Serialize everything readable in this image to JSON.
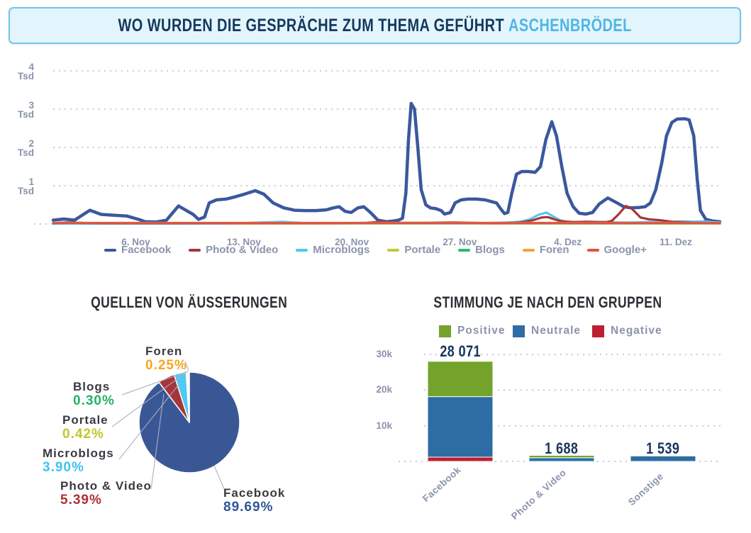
{
  "banner": {
    "title": "WO WURDEN DIE GESPRÄCHE ZUM THEMA GEFÜHRT",
    "highlight": "ASCHENBRÖDEL"
  },
  "colors": {
    "banner_bg": "#E3F5FC",
    "banner_border": "#74C5E8",
    "banner_text": "#14395E",
    "banner_highlight": "#4FB6E5",
    "axis_text": "#8A93AC",
    "gridline": "#C9CEDE",
    "section_title": "#2E2E36",
    "value_navy": "#17355E"
  },
  "chart_data": [
    {
      "type": "line",
      "title": "",
      "y_unit": "Tsd",
      "ylim": [
        0,
        4
      ],
      "y_ticks": [
        {
          "label": "4",
          "unit": "Tsd",
          "value": 4
        },
        {
          "label": "3",
          "unit": "Tsd",
          "value": 3
        },
        {
          "label": "2",
          "unit": "Tsd",
          "value": 2
        },
        {
          "label": "1",
          "unit": "Tsd",
          "value": 1
        }
      ],
      "x_ticks": [
        {
          "label": "6. Nov",
          "f": 0.124
        },
        {
          "label": "13. Nov",
          "f": 0.286
        },
        {
          "label": "20. Nov",
          "f": 0.448
        },
        {
          "label": "27. Nov",
          "f": 0.61
        },
        {
          "label": "4. Dez",
          "f": 0.772
        },
        {
          "label": "11. Dez",
          "f": 0.934
        }
      ],
      "draw_order": [
        3,
        4,
        0,
        2,
        1,
        5,
        6
      ],
      "series": [
        {
          "name": "Facebook",
          "color": "#3A589D",
          "width": 4.5,
          "points": [
            [
              0,
              0.1
            ],
            [
              0.016,
              0.13
            ],
            [
              0.032,
              0.1
            ],
            [
              0.055,
              0.36
            ],
            [
              0.072,
              0.25
            ],
            [
              0.09,
              0.23
            ],
            [
              0.11,
              0.21
            ],
            [
              0.128,
              0.12
            ],
            [
              0.138,
              0.06
            ],
            [
              0.154,
              0.05
            ],
            [
              0.17,
              0.1
            ],
            [
              0.188,
              0.47
            ],
            [
              0.202,
              0.33
            ],
            [
              0.21,
              0.25
            ],
            [
              0.218,
              0.12
            ],
            [
              0.227,
              0.18
            ],
            [
              0.234,
              0.55
            ],
            [
              0.245,
              0.63
            ],
            [
              0.259,
              0.65
            ],
            [
              0.271,
              0.7
            ],
            [
              0.287,
              0.78
            ],
            [
              0.303,
              0.87
            ],
            [
              0.316,
              0.78
            ],
            [
              0.33,
              0.55
            ],
            [
              0.346,
              0.42
            ],
            [
              0.362,
              0.36
            ],
            [
              0.378,
              0.35
            ],
            [
              0.394,
              0.35
            ],
            [
              0.41,
              0.37
            ],
            [
              0.42,
              0.42
            ],
            [
              0.429,
              0.45
            ],
            [
              0.438,
              0.33
            ],
            [
              0.447,
              0.3
            ],
            [
              0.457,
              0.42
            ],
            [
              0.466,
              0.45
            ],
            [
              0.476,
              0.3
            ],
            [
              0.487,
              0.1
            ],
            [
              0.5,
              0.06
            ],
            [
              0.511,
              0.08
            ],
            [
              0.518,
              0.1
            ],
            [
              0.524,
              0.15
            ],
            [
              0.529,
              0.8
            ],
            [
              0.533,
              2.2
            ],
            [
              0.537,
              3.15
            ],
            [
              0.542,
              3.0
            ],
            [
              0.547,
              2.0
            ],
            [
              0.552,
              0.9
            ],
            [
              0.559,
              0.5
            ],
            [
              0.566,
              0.42
            ],
            [
              0.574,
              0.4
            ],
            [
              0.582,
              0.35
            ],
            [
              0.587,
              0.26
            ],
            [
              0.596,
              0.3
            ],
            [
              0.603,
              0.55
            ],
            [
              0.612,
              0.63
            ],
            [
              0.622,
              0.65
            ],
            [
              0.635,
              0.65
            ],
            [
              0.648,
              0.63
            ],
            [
              0.656,
              0.59
            ],
            [
              0.665,
              0.55
            ],
            [
              0.672,
              0.38
            ],
            [
              0.677,
              0.27
            ],
            [
              0.682,
              0.3
            ],
            [
              0.688,
              0.8
            ],
            [
              0.695,
              1.3
            ],
            [
              0.703,
              1.37
            ],
            [
              0.713,
              1.37
            ],
            [
              0.723,
              1.35
            ],
            [
              0.731,
              1.5
            ],
            [
              0.739,
              2.2
            ],
            [
              0.748,
              2.67
            ],
            [
              0.755,
              2.3
            ],
            [
              0.763,
              1.5
            ],
            [
              0.771,
              0.8
            ],
            [
              0.78,
              0.45
            ],
            [
              0.789,
              0.28
            ],
            [
              0.799,
              0.26
            ],
            [
              0.809,
              0.3
            ],
            [
              0.819,
              0.52
            ],
            [
              0.832,
              0.68
            ],
            [
              0.846,
              0.55
            ],
            [
              0.856,
              0.45
            ],
            [
              0.867,
              0.42
            ],
            [
              0.878,
              0.43
            ],
            [
              0.888,
              0.45
            ],
            [
              0.896,
              0.55
            ],
            [
              0.904,
              0.9
            ],
            [
              0.913,
              1.6
            ],
            [
              0.92,
              2.3
            ],
            [
              0.928,
              2.65
            ],
            [
              0.936,
              2.74
            ],
            [
              0.947,
              2.75
            ],
            [
              0.954,
              2.72
            ],
            [
              0.961,
              2.3
            ],
            [
              0.966,
              1.2
            ],
            [
              0.971,
              0.35
            ],
            [
              0.979,
              0.12
            ],
            [
              0.989,
              0.08
            ],
            [
              1,
              0.06
            ]
          ]
        },
        {
          "name": "Photo & Video",
          "color": "#A5353A",
          "width": 3.2,
          "points": [
            [
              0,
              0.02
            ],
            [
              0.02,
              0.04
            ],
            [
              0.04,
              0.03
            ],
            [
              0.07,
              0.02
            ],
            [
              0.13,
              0.02
            ],
            [
              0.2,
              0.02
            ],
            [
              0.3,
              0.02
            ],
            [
              0.4,
              0.02
            ],
            [
              0.47,
              0.03
            ],
            [
              0.49,
              0.06
            ],
            [
              0.505,
              0.05
            ],
            [
              0.52,
              0.03
            ],
            [
              0.56,
              0.03
            ],
            [
              0.6,
              0.04
            ],
            [
              0.63,
              0.03
            ],
            [
              0.66,
              0.02
            ],
            [
              0.69,
              0.03
            ],
            [
              0.705,
              0.05
            ],
            [
              0.72,
              0.1
            ],
            [
              0.733,
              0.17
            ],
            [
              0.742,
              0.18
            ],
            [
              0.752,
              0.12
            ],
            [
              0.762,
              0.07
            ],
            [
              0.78,
              0.05
            ],
            [
              0.8,
              0.06
            ],
            [
              0.815,
              0.05
            ],
            [
              0.83,
              0.05
            ],
            [
              0.838,
              0.08
            ],
            [
              0.848,
              0.25
            ],
            [
              0.859,
              0.47
            ],
            [
              0.868,
              0.4
            ],
            [
              0.881,
              0.17
            ],
            [
              0.894,
              0.12
            ],
            [
              0.91,
              0.1
            ],
            [
              0.928,
              0.06
            ],
            [
              0.947,
              0.04
            ],
            [
              0.965,
              0.03
            ],
            [
              0.98,
              0.03
            ],
            [
              1,
              0.02
            ]
          ]
        },
        {
          "name": "Microblogs",
          "color": "#52C8F0",
          "width": 3.2,
          "points": [
            [
              0,
              0.01
            ],
            [
              0.1,
              0.01
            ],
            [
              0.2,
              0.01
            ],
            [
              0.28,
              0.02
            ],
            [
              0.33,
              0.05
            ],
            [
              0.345,
              0.06
            ],
            [
              0.36,
              0.04
            ],
            [
              0.38,
              0.02
            ],
            [
              0.45,
              0.02
            ],
            [
              0.5,
              0.02
            ],
            [
              0.55,
              0.02
            ],
            [
              0.6,
              0.02
            ],
            [
              0.64,
              0.02
            ],
            [
              0.66,
              0.03
            ],
            [
              0.68,
              0.04
            ],
            [
              0.7,
              0.06
            ],
            [
              0.715,
              0.12
            ],
            [
              0.728,
              0.24
            ],
            [
              0.74,
              0.3
            ],
            [
              0.75,
              0.2
            ],
            [
              0.76,
              0.1
            ],
            [
              0.77,
              0.06
            ],
            [
              0.79,
              0.05
            ],
            [
              0.81,
              0.06
            ],
            [
              0.83,
              0.05
            ],
            [
              0.85,
              0.04
            ],
            [
              0.87,
              0.04
            ],
            [
              0.89,
              0.05
            ],
            [
              0.91,
              0.04
            ],
            [
              0.93,
              0.06
            ],
            [
              0.945,
              0.07
            ],
            [
              0.96,
              0.06
            ],
            [
              0.975,
              0.07
            ],
            [
              0.99,
              0.05
            ],
            [
              1,
              0.04
            ]
          ]
        },
        {
          "name": "Portale",
          "color": "#C3C93A",
          "width": 3,
          "points": [
            [
              0,
              0.012
            ],
            [
              0.25,
              0.012
            ],
            [
              0.5,
              0.012
            ],
            [
              0.75,
              0.012
            ],
            [
              1,
              0.012
            ]
          ]
        },
        {
          "name": "Blogs",
          "color": "#29B873",
          "width": 3,
          "points": [
            [
              0,
              0.018
            ],
            [
              0.25,
              0.018
            ],
            [
              0.5,
              0.018
            ],
            [
              0.75,
              0.018
            ],
            [
              1,
              0.018
            ]
          ]
        },
        {
          "name": "Foren",
          "color": "#F0A23C",
          "width": 3,
          "points": [
            [
              0,
              0.03
            ],
            [
              0.25,
              0.03
            ],
            [
              0.5,
              0.03
            ],
            [
              0.75,
              0.03
            ],
            [
              1,
              0.03
            ]
          ]
        },
        {
          "name": "Google+",
          "color": "#DE5145",
          "width": 3,
          "points": [
            [
              0,
              0.022
            ],
            [
              0.25,
              0.022
            ],
            [
              0.5,
              0.022
            ],
            [
              0.75,
              0.022
            ],
            [
              1,
              0.022
            ]
          ]
        }
      ]
    },
    {
      "type": "pie",
      "title": "QUELLEN VON ÄUSSERUNGEN",
      "slices": [
        {
          "label": "Facebook",
          "pct": 89.69,
          "pct_display": "89.69%",
          "color": "#3A5795",
          "value_color": "#2F5597"
        },
        {
          "label": "Photo & Video",
          "pct": 5.39,
          "pct_display": "5.39%",
          "color": "#A5353A",
          "value_color": "#AE2F34"
        },
        {
          "label": "Microblogs",
          "pct": 3.9,
          "pct_display": "3.90%",
          "color": "#4FC9F2",
          "value_color": "#3FC4F0"
        },
        {
          "label": "Portale",
          "pct": 0.42,
          "pct_display": "0.42%",
          "color": "#C3C93A",
          "value_color": "#BFC52E"
        },
        {
          "label": "Blogs",
          "pct": 0.3,
          "pct_display": "0.30%",
          "color": "#29B873",
          "value_color": "#21B364"
        },
        {
          "label": "Foren",
          "pct": 0.25,
          "pct_display": "0.25%",
          "color": "#F2A33C",
          "value_color": "#F5A623"
        }
      ]
    },
    {
      "type": "bar",
      "stacked": true,
      "title": "STIMMUNG JE NACH DEN GRUPPEN",
      "legend": [
        {
          "label": "Positive",
          "color": "#74A32C"
        },
        {
          "label": "Neutrale",
          "color": "#2E6DA4"
        },
        {
          "label": "Negative",
          "color": "#BE1F2E"
        }
      ],
      "categories": [
        "Facebook",
        "Photo & Video",
        "Sonstige"
      ],
      "totals": [
        28071,
        1688,
        1539
      ],
      "totals_display": [
        "28 071",
        "1 688",
        "1 539"
      ],
      "ylim": [
        0,
        33000
      ],
      "y_ticks": [
        {
          "label": "30k",
          "value": 30000
        },
        {
          "label": "20k",
          "value": 20000
        },
        {
          "label": "10k",
          "value": 10000
        }
      ],
      "stack_order_bottom_up": [
        "Negative",
        "Neutrale",
        "Positive"
      ],
      "series": [
        {
          "name": "Positive",
          "color": "#74A32C",
          "values": [
            9900,
            650,
            0
          ]
        },
        {
          "name": "Neutrale",
          "color": "#2E6DA4",
          "values": [
            16971,
            1038,
            1539
          ]
        },
        {
          "name": "Negative",
          "color": "#BE1F2E",
          "values": [
            1200,
            0,
            0
          ]
        }
      ]
    }
  ]
}
